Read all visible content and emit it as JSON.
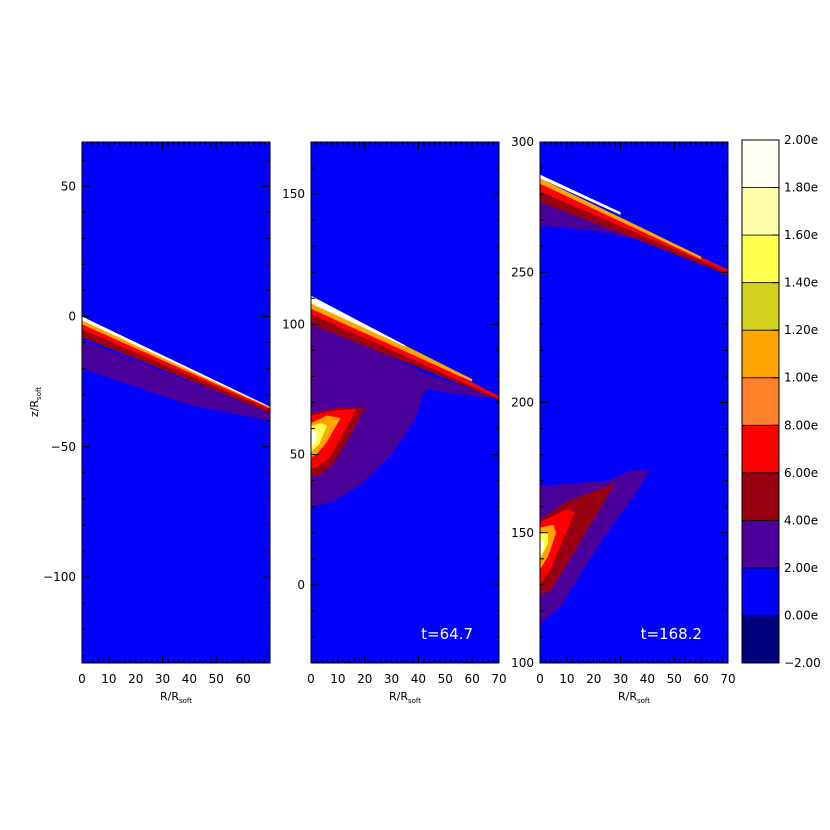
{
  "chart_data": {
    "type": "heatmap",
    "axis_label": {
      "x_main": "R/R",
      "x_sub": "soft",
      "y_main": "z/R",
      "y_sub": "soft"
    },
    "colorbar": {
      "levels": [
        -2.0,
        0.0,
        2.0,
        4.0,
        6.0,
        8.0,
        10.0,
        12.0,
        14.0,
        16.0,
        18.0,
        20.0
      ],
      "tick_labels": [
        "2.00e",
        "1.80e",
        "1.60e",
        "1.40e",
        "1.20e",
        "1.00e",
        "8.00e",
        "6.00e",
        "4.00e",
        "2.00e",
        "0.00e",
        "−2.00"
      ],
      "band_colors": [
        "#00007f",
        "#0000ff",
        "#4b0099",
        "#990011",
        "#ff0000",
        "#ff7f2a",
        "#ffa500",
        "#d2d21e",
        "#ffff4d",
        "#ffffaa",
        "#fffff2"
      ]
    },
    "panels": [
      {
        "xlim": [
          0,
          70
        ],
        "ylim": [
          -133,
          67
        ],
        "x_ticks": [
          0,
          10,
          20,
          30,
          40,
          50,
          60
        ],
        "y_ticks": [
          50,
          0,
          -50,
          -100
        ],
        "annotation": "",
        "features": [
          {
            "level": 2,
            "polygon": [
              [
                0,
                -9
              ],
              [
                70,
                -37
              ],
              [
                70,
                -40
              ],
              [
                40,
                -34
              ],
              [
                20,
                -27
              ],
              [
                0,
                -20
              ]
            ]
          },
          {
            "level": 4,
            "polygon": [
              [
                0,
                -3
              ],
              [
                70,
                -35.5
              ],
              [
                70,
                -37
              ],
              [
                0,
                -8
              ]
            ]
          },
          {
            "level": 6,
            "polygon": [
              [
                0,
                -1.5
              ],
              [
                70,
                -35
              ],
              [
                70,
                -35.8
              ],
              [
                0,
                -5
              ]
            ]
          },
          {
            "level": 10,
            "polygon": [
              [
                0,
                -0.5
              ],
              [
                70,
                -34.8
              ],
              [
                70,
                -35.2
              ],
              [
                0,
                -3
              ]
            ]
          },
          {
            "level": 18,
            "polygon": [
              [
                0,
                0
              ],
              [
                70,
                -34.6
              ],
              [
                70,
                -34.9
              ],
              [
                0,
                -1.5
              ]
            ]
          }
        ]
      },
      {
        "xlim": [
          0,
          70
        ],
        "ylim": [
          -30,
          170
        ],
        "x_ticks": [
          0,
          10,
          20,
          30,
          40,
          50,
          60,
          70
        ],
        "y_ticks": [
          150,
          100,
          50,
          0
        ],
        "annotation": "t=64.7",
        "features": [
          {
            "level": 2,
            "polygon": [
              [
                0,
                102
              ],
              [
                45,
                80
              ],
              [
                70,
                72
              ],
              [
                64,
                72
              ],
              [
                50,
                74
              ],
              [
                44,
                75
              ],
              [
                42,
                74
              ],
              [
                39,
                64
              ],
              [
                30,
                50
              ],
              [
                18,
                38
              ],
              [
                8,
                32
              ],
              [
                0,
                30
              ]
            ]
          },
          {
            "level": 4,
            "polygon": [
              [
                0,
                107
              ],
              [
                70,
                72
              ],
              [
                70,
                71
              ],
              [
                0,
                100
              ]
            ]
          },
          {
            "level": 6,
            "polygon": [
              [
                0,
                109
              ],
              [
                70,
                72.5
              ],
              [
                70,
                71.5
              ],
              [
                0,
                104
              ]
            ]
          },
          {
            "level": 10,
            "polygon": [
              [
                0,
                110
              ],
              [
                60,
                79
              ],
              [
                60,
                78
              ],
              [
                0,
                106
              ]
            ]
          },
          {
            "level": 18,
            "polygon": [
              [
                0,
                111
              ],
              [
                35,
                92
              ],
              [
                35,
                91.5
              ],
              [
                0,
                108
              ]
            ]
          },
          {
            "level": 4,
            "polygon": [
              [
                0,
                66
              ],
              [
                10,
                68
              ],
              [
                20,
                68
              ],
              [
                14,
                56
              ],
              [
                8,
                46
              ],
              [
                3,
                42
              ],
              [
                0,
                42
              ]
            ]
          },
          {
            "level": 6,
            "polygon": [
              [
                0,
                65
              ],
              [
                9,
                67
              ],
              [
                17,
                67.5
              ],
              [
                12,
                58
              ],
              [
                7,
                49
              ],
              [
                2,
                45
              ],
              [
                0,
                45
              ]
            ]
          },
          {
            "level": 10,
            "polygon": [
              [
                0,
                62
              ],
              [
                6,
                65
              ],
              [
                11,
                64
              ],
              [
                6,
                55
              ],
              [
                2,
                50
              ],
              [
                0,
                49
              ]
            ]
          },
          {
            "level": 14,
            "polygon": [
              [
                0,
                61
              ],
              [
                4,
                62
              ],
              [
                6,
                61
              ],
              [
                3,
                54
              ],
              [
                0,
                51
              ]
            ]
          },
          {
            "level": 18,
            "polygon": [
              [
                0,
                59
              ],
              [
                2,
                59
              ],
              [
                2,
                55
              ],
              [
                0,
                53
              ]
            ]
          }
        ]
      },
      {
        "xlim": [
          0,
          70
        ],
        "ylim": [
          100,
          300
        ],
        "x_ticks": [
          0,
          10,
          20,
          30,
          40,
          50,
          60,
          70
        ],
        "y_ticks": [
          300,
          250,
          200,
          150,
          100
        ],
        "annotation": "t=168.2",
        "features": [
          {
            "level": 2,
            "polygon": [
              [
                0,
                268
              ],
              [
                20,
                266
              ],
              [
                40,
                262
              ],
              [
                60,
                254
              ],
              [
                70,
                248
              ],
              [
                70,
                251
              ],
              [
                0,
                282
              ]
            ]
          },
          {
            "level": 4,
            "polygon": [
              [
                0,
                277
              ],
              [
                70,
                249
              ],
              [
                70,
                251
              ],
              [
                0,
                284
              ]
            ]
          },
          {
            "level": 6,
            "polygon": [
              [
                0,
                281
              ],
              [
                70,
                250
              ],
              [
                70,
                251
              ],
              [
                0,
                285
              ]
            ]
          },
          {
            "level": 10,
            "polygon": [
              [
                0,
                284
              ],
              [
                60,
                255
              ],
              [
                60,
                256
              ],
              [
                0,
                286
              ]
            ]
          },
          {
            "level": 18,
            "polygon": [
              [
                0,
                286
              ],
              [
                30,
                272
              ],
              [
                30,
                273
              ],
              [
                0,
                287.5
              ]
            ]
          },
          {
            "level": 2,
            "polygon": [
              [
                0,
                168
              ],
              [
                25,
                170
              ],
              [
                34,
                174
              ],
              [
                41,
                174
              ],
              [
                35,
                164
              ],
              [
                25,
                150
              ],
              [
                15,
                134
              ],
              [
                8,
                122
              ],
              [
                0,
                115
              ]
            ]
          },
          {
            "level": 4,
            "polygon": [
              [
                0,
                155
              ],
              [
                10,
                162
              ],
              [
                20,
                166
              ],
              [
                28,
                169
              ],
              [
                18,
                152
              ],
              [
                10,
                138
              ],
              [
                4,
                128
              ],
              [
                0,
                126
              ]
            ]
          },
          {
            "level": 6,
            "polygon": [
              [
                0,
                154
              ],
              [
                10,
                159
              ],
              [
                13,
                158
              ],
              [
                8,
                146
              ],
              [
                4,
                136
              ],
              [
                0,
                130
              ]
            ]
          },
          {
            "level": 10,
            "polygon": [
              [
                0,
                152
              ],
              [
                5,
                153
              ],
              [
                6,
                150
              ],
              [
                3,
                141
              ],
              [
                0,
                136
              ]
            ]
          },
          {
            "level": 14,
            "polygon": [
              [
                0,
                150
              ],
              [
                3,
                150
              ],
              [
                3,
                146
              ],
              [
                0,
                140
              ]
            ]
          },
          {
            "level": 18,
            "polygon": [
              [
                0,
                147
              ],
              [
                1.5,
                147
              ],
              [
                1.5,
                144
              ],
              [
                0,
                141
              ]
            ]
          }
        ]
      }
    ]
  }
}
